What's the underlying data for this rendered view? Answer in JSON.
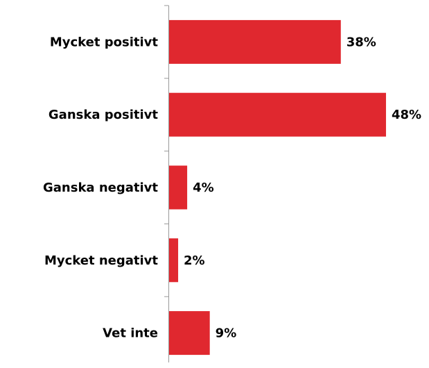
{
  "chart_data": {
    "type": "bar",
    "orientation": "horizontal",
    "categories": [
      "Mycket positivt",
      "Ganska positivt",
      "Ganska negativt",
      "Mycket negativt",
      "Vet inte"
    ],
    "values": [
      38,
      48,
      4,
      2,
      9
    ],
    "value_labels": [
      "38%",
      "48%",
      "4%",
      "2%",
      "9%"
    ],
    "color": "#e0282f"
  }
}
